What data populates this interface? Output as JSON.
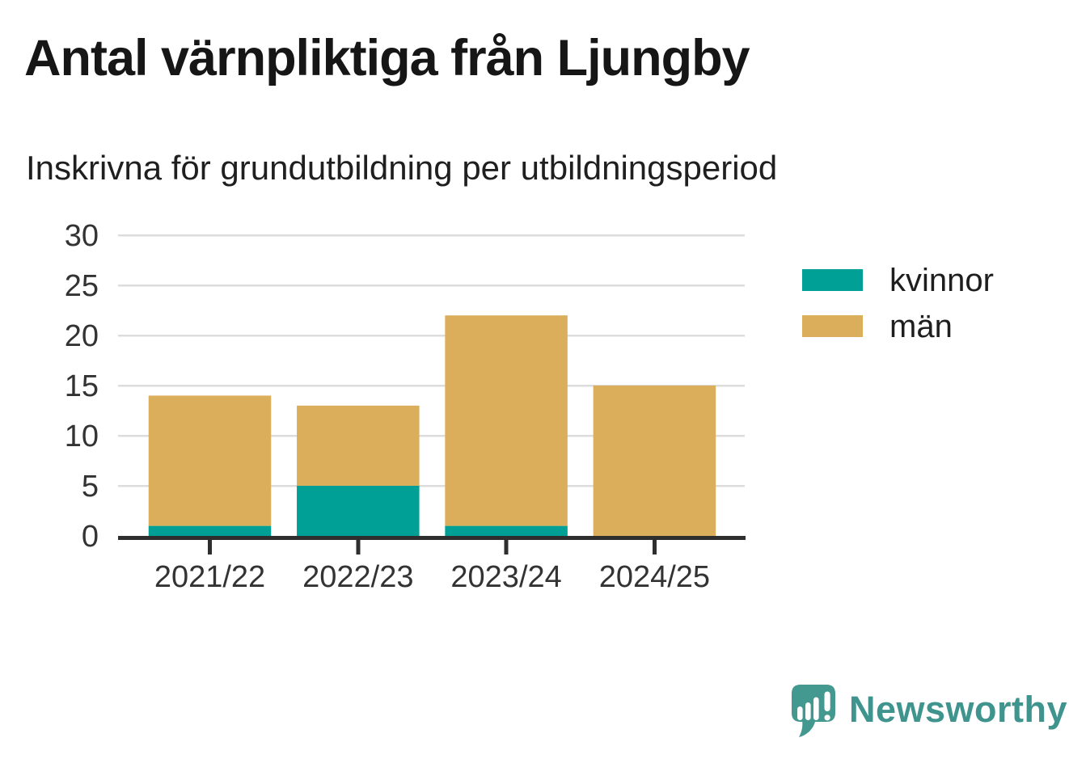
{
  "header": {
    "title": "Antal värnpliktiga från Ljungby",
    "subtitle": "Inskrivna för grundutbildning per utbildningsperiod"
  },
  "chart_data": {
    "type": "bar",
    "stacked": true,
    "title": "Antal värnpliktiga från Ljungby",
    "subtitle": "Inskrivna för grundutbildning per utbildningsperiod",
    "categories": [
      "2021/22",
      "2022/23",
      "2023/24",
      "2024/25"
    ],
    "series": [
      {
        "name": "kvinnor",
        "color": "#00A096",
        "values": [
          1,
          5,
          1,
          0
        ]
      },
      {
        "name": "män",
        "color": "#DBAE5C",
        "values": [
          13,
          8,
          21,
          15
        ]
      }
    ],
    "totals": [
      14,
      13,
      22,
      15
    ],
    "xlabel": "",
    "ylabel": "",
    "ylim": [
      0,
      30
    ],
    "yticks": [
      0,
      5,
      10,
      15,
      20,
      25,
      30
    ],
    "grid": true,
    "legend_position": "right"
  },
  "colors": {
    "background": "#FFFFFF",
    "grid_line": "#DCDCDC",
    "axis_line": "#2E2E2E",
    "tick_label": "#333333",
    "title_text": "#161616",
    "subtitle_text": "#1F1F1F",
    "legend_text": "#1E1E1E"
  },
  "branding": {
    "wordmark": "Newsworthy",
    "color": "#3F948D",
    "icon": "speech-bubble-bar-chart-icon"
  }
}
